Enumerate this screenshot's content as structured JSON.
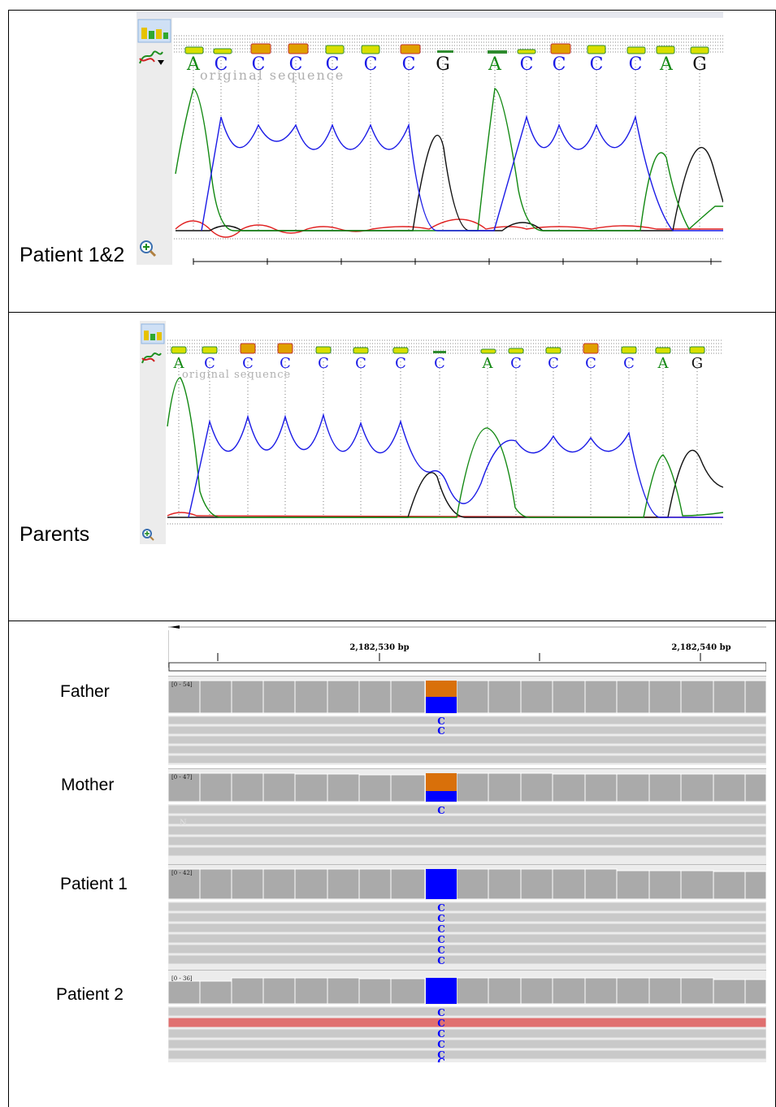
{
  "panels": {
    "patients": {
      "label": "Patient 1&2",
      "bases": [
        "A",
        "C",
        "C",
        "C",
        "C",
        "C",
        "C",
        "G",
        "A",
        "C",
        "C",
        "C",
        "C",
        "A",
        "G"
      ],
      "reference_caption": "original sequence"
    },
    "parents": {
      "label": "Parents",
      "bases": [
        "A",
        "C",
        "C",
        "C",
        "C",
        "C",
        "C",
        "C",
        "A",
        "C",
        "C",
        "C",
        "C",
        "A",
        "G"
      ],
      "reference_caption": "original sequence"
    }
  },
  "igv": {
    "ruler": {
      "pos1": "2,182,530 bp",
      "pos2": "2,182,540 bp"
    },
    "tracks": [
      {
        "name": "Father",
        "range": "[0 - 54]",
        "reads": [
          "C",
          "C"
        ]
      },
      {
        "name": "Mother",
        "range": "[0 - 47]",
        "reads": [
          "C"
        ],
        "extra": "N"
      },
      {
        "name": "Patient 1",
        "range": "[0 - 42]",
        "reads": [
          "C",
          "C",
          "C",
          "C",
          "C",
          "C"
        ]
      },
      {
        "name": "Patient 2",
        "range": "[0 - 36]",
        "reads": [
          "C",
          "C",
          "C",
          "C",
          "C",
          "C"
        ]
      }
    ]
  },
  "colors": {
    "A_trace": "#118811",
    "C_trace": "#1a1ae6",
    "G_trace": "#111111",
    "T_trace": "#e02020",
    "ref_allele": "#d9700a",
    "alt_allele": "#0000ff",
    "coverage_bar": "#aaaaaa",
    "read": "#c9c9c9",
    "highlight_read": "#e07070"
  }
}
